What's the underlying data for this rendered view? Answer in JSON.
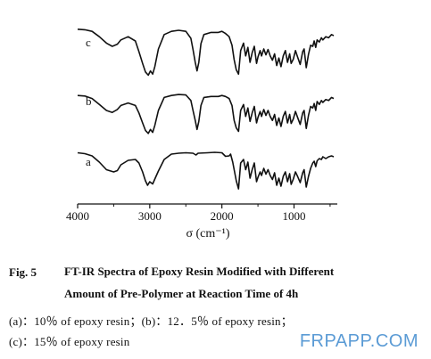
{
  "chart_data": {
    "type": "line",
    "xlabel": "σ (cm⁻¹)",
    "xlim": [
      4000,
      400
    ],
    "x_ticks": [
      "4000",
      "3000",
      "2000",
      "1000"
    ],
    "x_tick_values": [
      4000,
      3000,
      2000,
      1000
    ],
    "series": [
      {
        "name": "a",
        "points": [
          [
            4000,
            0.93
          ],
          [
            3900,
            0.91
          ],
          [
            3800,
            0.86
          ],
          [
            3700,
            0.72
          ],
          [
            3600,
            0.55
          ],
          [
            3500,
            0.5
          ],
          [
            3450,
            0.53
          ],
          [
            3400,
            0.66
          ],
          [
            3300,
            0.76
          ],
          [
            3200,
            0.78
          ],
          [
            3150,
            0.7
          ],
          [
            3100,
            0.5
          ],
          [
            3060,
            0.3
          ],
          [
            3030,
            0.2
          ],
          [
            3000,
            0.28
          ],
          [
            2960,
            0.23
          ],
          [
            2930,
            0.34
          ],
          [
            2880,
            0.52
          ],
          [
            2800,
            0.78
          ],
          [
            2700,
            0.9
          ],
          [
            2600,
            0.92
          ],
          [
            2500,
            0.93
          ],
          [
            2400,
            0.92
          ],
          [
            2360,
            0.88
          ],
          [
            2330,
            0.92
          ],
          [
            2200,
            0.93
          ],
          [
            2100,
            0.94
          ],
          [
            2000,
            0.93
          ],
          [
            1950,
            0.85
          ],
          [
            1900,
            0.86
          ],
          [
            1880,
            0.9
          ],
          [
            1850,
            0.72
          ],
          [
            1800,
            0.3
          ],
          [
            1770,
            0.12
          ],
          [
            1740,
            0.7
          ],
          [
            1700,
            0.78
          ],
          [
            1670,
            0.55
          ],
          [
            1640,
            0.72
          ],
          [
            1610,
            0.36
          ],
          [
            1580,
            0.55
          ],
          [
            1550,
            0.7
          ],
          [
            1520,
            0.28
          ],
          [
            1500,
            0.38
          ],
          [
            1470,
            0.5
          ],
          [
            1450,
            0.42
          ],
          [
            1420,
            0.58
          ],
          [
            1390,
            0.45
          ],
          [
            1360,
            0.55
          ],
          [
            1330,
            0.42
          ],
          [
            1300,
            0.33
          ],
          [
            1270,
            0.48
          ],
          [
            1240,
            0.2
          ],
          [
            1210,
            0.36
          ],
          [
            1180,
            0.18
          ],
          [
            1150,
            0.4
          ],
          [
            1120,
            0.5
          ],
          [
            1090,
            0.28
          ],
          [
            1060,
            0.46
          ],
          [
            1040,
            0.22
          ],
          [
            1010,
            0.34
          ],
          [
            980,
            0.5
          ],
          [
            950,
            0.4
          ],
          [
            915,
            0.26
          ],
          [
            880,
            0.48
          ],
          [
            860,
            0.55
          ],
          [
            830,
            0.16
          ],
          [
            800,
            0.4
          ],
          [
            770,
            0.58
          ],
          [
            740,
            0.7
          ],
          [
            720,
            0.74
          ],
          [
            700,
            0.62
          ],
          [
            680,
            0.75
          ],
          [
            650,
            0.8
          ],
          [
            620,
            0.78
          ],
          [
            600,
            0.84
          ],
          [
            560,
            0.8
          ],
          [
            520,
            0.84
          ],
          [
            480,
            0.86
          ],
          [
            450,
            0.84
          ]
        ]
      },
      {
        "name": "b",
        "points": [
          [
            4000,
            0.8
          ],
          [
            3900,
            0.79
          ],
          [
            3800,
            0.74
          ],
          [
            3700,
            0.62
          ],
          [
            3600,
            0.5
          ],
          [
            3520,
            0.46
          ],
          [
            3450,
            0.52
          ],
          [
            3400,
            0.6
          ],
          [
            3300,
            0.65
          ],
          [
            3200,
            0.6
          ],
          [
            3150,
            0.45
          ],
          [
            3100,
            0.25
          ],
          [
            3060,
            0.1
          ],
          [
            3020,
            0.04
          ],
          [
            2990,
            0.12
          ],
          [
            2960,
            0.06
          ],
          [
            2930,
            0.2
          ],
          [
            2880,
            0.5
          ],
          [
            2800,
            0.76
          ],
          [
            2700,
            0.8
          ],
          [
            2600,
            0.82
          ],
          [
            2500,
            0.81
          ],
          [
            2430,
            0.7
          ],
          [
            2400,
            0.5
          ],
          [
            2370,
            0.3
          ],
          [
            2345,
            0.12
          ],
          [
            2320,
            0.28
          ],
          [
            2290,
            0.6
          ],
          [
            2250,
            0.76
          ],
          [
            2150,
            0.78
          ],
          [
            2050,
            0.78
          ],
          [
            2000,
            0.8
          ],
          [
            1950,
            0.78
          ],
          [
            1900,
            0.74
          ],
          [
            1860,
            0.6
          ],
          [
            1830,
            0.3
          ],
          [
            1800,
            0.15
          ],
          [
            1770,
            0.08
          ],
          [
            1740,
            0.5
          ],
          [
            1700,
            0.62
          ],
          [
            1670,
            0.38
          ],
          [
            1640,
            0.55
          ],
          [
            1610,
            0.28
          ],
          [
            1580,
            0.45
          ],
          [
            1550,
            0.58
          ],
          [
            1520,
            0.25
          ],
          [
            1500,
            0.36
          ],
          [
            1470,
            0.48
          ],
          [
            1450,
            0.38
          ],
          [
            1420,
            0.52
          ],
          [
            1390,
            0.4
          ],
          [
            1360,
            0.5
          ],
          [
            1330,
            0.38
          ],
          [
            1300,
            0.3
          ],
          [
            1270,
            0.42
          ],
          [
            1240,
            0.2
          ],
          [
            1210,
            0.35
          ],
          [
            1180,
            0.18
          ],
          [
            1150,
            0.38
          ],
          [
            1120,
            0.48
          ],
          [
            1090,
            0.25
          ],
          [
            1060,
            0.42
          ],
          [
            1040,
            0.24
          ],
          [
            1010,
            0.33
          ],
          [
            980,
            0.48
          ],
          [
            950,
            0.36
          ],
          [
            915,
            0.22
          ],
          [
            880,
            0.45
          ],
          [
            860,
            0.5
          ],
          [
            830,
            0.14
          ],
          [
            800,
            0.4
          ],
          [
            770,
            0.58
          ],
          [
            740,
            0.55
          ],
          [
            720,
            0.64
          ],
          [
            700,
            0.5
          ],
          [
            680,
            0.68
          ],
          [
            650,
            0.62
          ],
          [
            620,
            0.7
          ],
          [
            600,
            0.66
          ],
          [
            560,
            0.72
          ],
          [
            520,
            0.7
          ],
          [
            480,
            0.76
          ],
          [
            450,
            0.74
          ]
        ]
      },
      {
        "name": "c",
        "points": [
          [
            4000,
            0.92
          ],
          [
            3900,
            0.91
          ],
          [
            3800,
            0.88
          ],
          [
            3700,
            0.78
          ],
          [
            3600,
            0.66
          ],
          [
            3520,
            0.6
          ],
          [
            3450,
            0.64
          ],
          [
            3400,
            0.72
          ],
          [
            3300,
            0.78
          ],
          [
            3200,
            0.7
          ],
          [
            3150,
            0.5
          ],
          [
            3100,
            0.28
          ],
          [
            3060,
            0.12
          ],
          [
            3020,
            0.06
          ],
          [
            2990,
            0.14
          ],
          [
            2960,
            0.08
          ],
          [
            2930,
            0.22
          ],
          [
            2880,
            0.55
          ],
          [
            2800,
            0.82
          ],
          [
            2700,
            0.88
          ],
          [
            2600,
            0.9
          ],
          [
            2500,
            0.88
          ],
          [
            2430,
            0.75
          ],
          [
            2400,
            0.54
          ],
          [
            2370,
            0.3
          ],
          [
            2345,
            0.14
          ],
          [
            2320,
            0.3
          ],
          [
            2290,
            0.65
          ],
          [
            2250,
            0.82
          ],
          [
            2150,
            0.86
          ],
          [
            2050,
            0.86
          ],
          [
            2000,
            0.88
          ],
          [
            1950,
            0.84
          ],
          [
            1900,
            0.78
          ],
          [
            1860,
            0.62
          ],
          [
            1830,
            0.35
          ],
          [
            1800,
            0.16
          ],
          [
            1770,
            0.08
          ],
          [
            1740,
            0.52
          ],
          [
            1700,
            0.66
          ],
          [
            1670,
            0.42
          ],
          [
            1640,
            0.58
          ],
          [
            1610,
            0.3
          ],
          [
            1580,
            0.48
          ],
          [
            1550,
            0.6
          ],
          [
            1520,
            0.28
          ],
          [
            1500,
            0.4
          ],
          [
            1470,
            0.52
          ],
          [
            1450,
            0.42
          ],
          [
            1420,
            0.55
          ],
          [
            1390,
            0.44
          ],
          [
            1360,
            0.54
          ],
          [
            1330,
            0.42
          ],
          [
            1300,
            0.34
          ],
          [
            1270,
            0.46
          ],
          [
            1240,
            0.24
          ],
          [
            1210,
            0.38
          ],
          [
            1180,
            0.22
          ],
          [
            1150,
            0.42
          ],
          [
            1120,
            0.52
          ],
          [
            1090,
            0.3
          ],
          [
            1060,
            0.46
          ],
          [
            1040,
            0.28
          ],
          [
            1010,
            0.36
          ],
          [
            980,
            0.52
          ],
          [
            950,
            0.4
          ],
          [
            915,
            0.26
          ],
          [
            880,
            0.5
          ],
          [
            860,
            0.55
          ],
          [
            830,
            0.2
          ],
          [
            800,
            0.45
          ],
          [
            770,
            0.62
          ],
          [
            740,
            0.6
          ],
          [
            720,
            0.7
          ],
          [
            700,
            0.58
          ],
          [
            680,
            0.72
          ],
          [
            650,
            0.68
          ],
          [
            620,
            0.76
          ],
          [
            600,
            0.72
          ],
          [
            560,
            0.78
          ],
          [
            520,
            0.76
          ],
          [
            480,
            0.82
          ],
          [
            450,
            0.8
          ]
        ]
      }
    ],
    "grid": false
  },
  "caption": {
    "fig_number": "Fig. 5",
    "title_line1": "FT-IR Spectra of Epoxy Resin Modified with Different",
    "title_line2": "Amount of Pre-Polymer at Reaction Time of 4h",
    "legend_line1": "(a)：10％ of epoxy resin；(b)：12．5％ of epoxy resin；",
    "legend_line2": "(c)：15％ of epoxy resin"
  },
  "watermark": "FRPAPP.COM"
}
